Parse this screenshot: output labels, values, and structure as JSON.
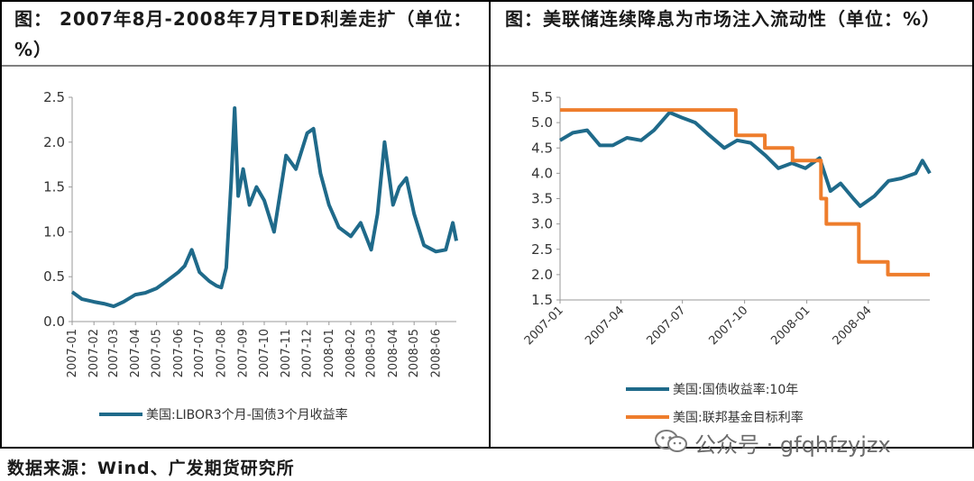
{
  "left_panel": {
    "title": "图： 2007年8月-2008年7月TED利差走扩（单位：%）"
  },
  "right_panel": {
    "title": "图：美联储连续降息为市场注入流动性（单位：%）"
  },
  "source": "数据来源：Wind、广发期货研究所",
  "watermark": {
    "text": "公众号 · gfqhfzyjzx",
    "icon": "wechat-icon"
  },
  "colors": {
    "teal": "#1f6a8a",
    "orange": "#ee7d2c",
    "border": "#000000"
  },
  "chart_data": [
    {
      "type": "line",
      "x_ticks": [
        "2007-01",
        "2007-02",
        "2007-03",
        "2007-04",
        "2007-05",
        "2007-06",
        "2007-07",
        "2007-08",
        "2007-09",
        "2007-10",
        "2007-11",
        "2007-12",
        "2008-01",
        "2008-02",
        "2008-03",
        "2008-04",
        "2008-05",
        "2008-06"
      ],
      "ylim": [
        0.0,
        2.5
      ],
      "y_ticks": [
        "0.0",
        "0.5",
        "1.0",
        "1.5",
        "2.0",
        "2.5"
      ],
      "legend": "bottom",
      "series": [
        {
          "name": "美国:LIBOR3个月-国债3个月收益率",
          "color": "#1f6a8a",
          "x": [
            "2007-01-01",
            "2007-01-15",
            "2007-02-01",
            "2007-02-15",
            "2007-03-01",
            "2007-03-15",
            "2007-04-01",
            "2007-04-15",
            "2007-05-01",
            "2007-05-15",
            "2007-06-01",
            "2007-06-10",
            "2007-06-20",
            "2007-07-01",
            "2007-07-15",
            "2007-07-25",
            "2007-08-01",
            "2007-08-08",
            "2007-08-15",
            "2007-08-20",
            "2007-08-25",
            "2007-09-01",
            "2007-09-10",
            "2007-09-20",
            "2007-10-01",
            "2007-10-15",
            "2007-11-01",
            "2007-11-15",
            "2007-12-01",
            "2007-12-10",
            "2007-12-20",
            "2008-01-01",
            "2008-01-15",
            "2008-02-01",
            "2008-02-15",
            "2008-03-01",
            "2008-03-10",
            "2008-03-20",
            "2008-04-01",
            "2008-04-10",
            "2008-04-20",
            "2008-05-01",
            "2008-05-15",
            "2008-06-01",
            "2008-06-15",
            "2008-06-25",
            "2008-06-30"
          ],
          "values": [
            0.33,
            0.25,
            0.22,
            0.2,
            0.17,
            0.22,
            0.3,
            0.32,
            0.37,
            0.45,
            0.55,
            0.62,
            0.8,
            0.55,
            0.45,
            0.4,
            0.38,
            0.6,
            1.55,
            2.38,
            1.4,
            1.7,
            1.3,
            1.5,
            1.35,
            1.0,
            1.85,
            1.7,
            2.1,
            2.15,
            1.65,
            1.3,
            1.05,
            0.95,
            1.1,
            0.8,
            1.2,
            2.0,
            1.3,
            1.5,
            1.6,
            1.2,
            0.85,
            0.78,
            0.8,
            1.1,
            0.9
          ]
        }
      ]
    },
    {
      "type": "line",
      "x_ticks": [
        "2007-01",
        "2007-04",
        "2007-07",
        "2007-10",
        "2008-01",
        "2008-04"
      ],
      "ylim": [
        1.5,
        5.5
      ],
      "y_ticks": [
        "1.5",
        "2.0",
        "2.5",
        "3.0",
        "3.5",
        "4.0",
        "4.5",
        "5.0",
        "5.5"
      ],
      "legend": "bottom",
      "series": [
        {
          "name": "美国:国债收益率:10年",
          "color": "#1f6a8a",
          "x": [
            "2007-01-01",
            "2007-01-20",
            "2007-02-10",
            "2007-03-01",
            "2007-03-20",
            "2007-04-10",
            "2007-05-01",
            "2007-05-20",
            "2007-06-12",
            "2007-06-30",
            "2007-07-20",
            "2007-08-10",
            "2007-09-01",
            "2007-09-20",
            "2007-10-10",
            "2007-11-01",
            "2007-11-20",
            "2007-12-10",
            "2007-12-30",
            "2008-01-20",
            "2008-02-05",
            "2008-02-20",
            "2008-03-10",
            "2008-03-20",
            "2008-04-10",
            "2008-05-01",
            "2008-05-20",
            "2008-06-10",
            "2008-06-20",
            "2008-07-01"
          ],
          "values": [
            4.65,
            4.8,
            4.85,
            4.55,
            4.55,
            4.7,
            4.65,
            4.85,
            5.2,
            5.1,
            5.0,
            4.75,
            4.5,
            4.65,
            4.6,
            4.35,
            4.1,
            4.2,
            4.1,
            4.3,
            3.65,
            3.8,
            3.5,
            3.35,
            3.55,
            3.85,
            3.9,
            4.0,
            4.25,
            4.0
          ]
        },
        {
          "name": "美国:联邦基金目标利率",
          "color": "#ee7d2c",
          "x": [
            "2007-01-01",
            "2007-09-18",
            "2007-09-18",
            "2007-10-31",
            "2007-10-31",
            "2007-12-11",
            "2007-12-11",
            "2008-01-22",
            "2008-01-22",
            "2008-01-30",
            "2008-01-30",
            "2008-03-18",
            "2008-03-18",
            "2008-04-30",
            "2008-04-30",
            "2008-07-01"
          ],
          "values": [
            5.25,
            5.25,
            4.75,
            4.75,
            4.5,
            4.5,
            4.25,
            4.25,
            3.5,
            3.5,
            3.0,
            3.0,
            2.25,
            2.25,
            2.0,
            2.0
          ]
        }
      ]
    }
  ]
}
